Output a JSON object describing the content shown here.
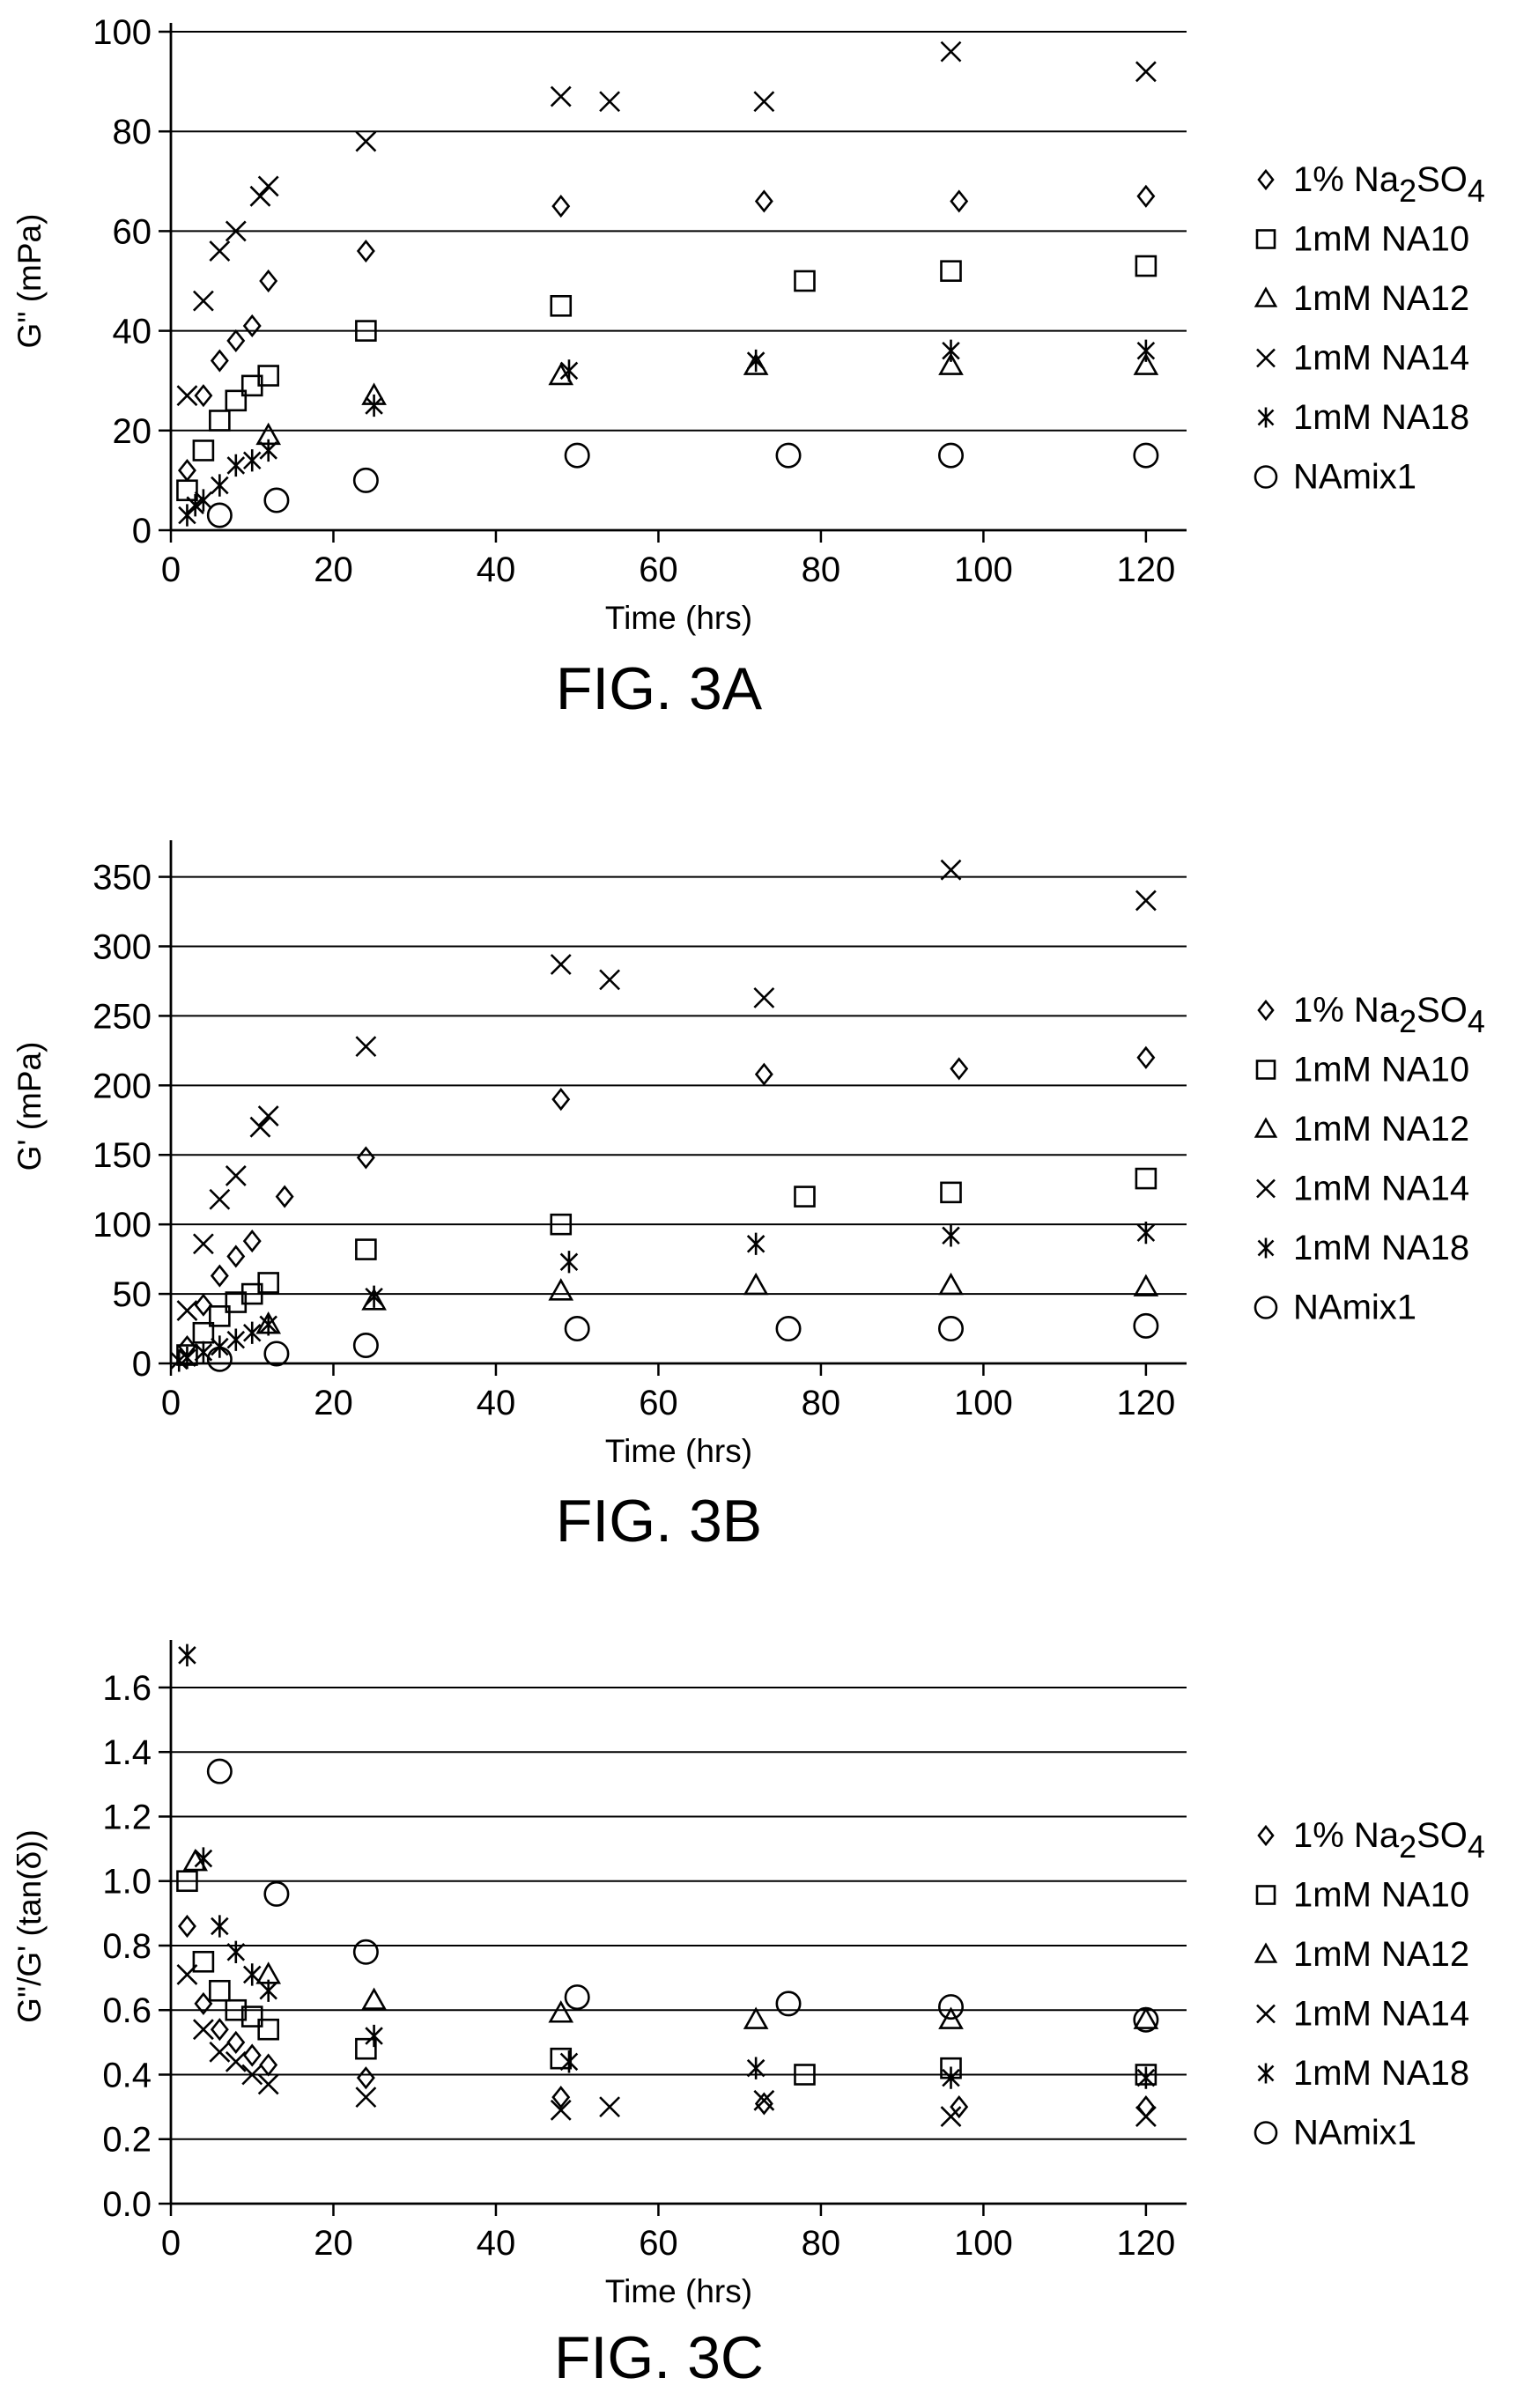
{
  "chart_data": [
    {
      "type": "scatter",
      "figure_label": "FIG. 3A",
      "xlabel": "Time (hrs)",
      "ylabel": "G\" (mPa)",
      "xlim": [
        0,
        125
      ],
      "ylim": [
        0,
        100
      ],
      "xticks": [
        0,
        20,
        40,
        60,
        80,
        100,
        120
      ],
      "yticks": [
        0,
        20,
        40,
        60,
        80,
        100
      ],
      "grid": "horizontal",
      "legend_position": "right",
      "series": [
        {
          "name": "1% Na2SO4",
          "marker": "diamond",
          "x": [
            2,
            4,
            6,
            8,
            10,
            12,
            24,
            48,
            73,
            97,
            120
          ],
          "y": [
            12,
            27,
            34,
            38,
            41,
            50,
            56,
            65,
            66,
            66,
            67
          ]
        },
        {
          "name": "1mM NA10",
          "marker": "square",
          "x": [
            2,
            4,
            6,
            8,
            10,
            12,
            24,
            48,
            78,
            96,
            120
          ],
          "y": [
            8,
            16,
            22,
            26,
            29,
            31,
            40,
            45,
            50,
            52,
            53
          ]
        },
        {
          "name": "1mM NA12",
          "marker": "triangle",
          "x": [
            12,
            25,
            48,
            72,
            96,
            120
          ],
          "y": [
            19,
            27,
            31,
            33,
            33,
            33
          ]
        },
        {
          "name": "1mM NA14",
          "marker": "x",
          "x": [
            2,
            4,
            6,
            8,
            11,
            12,
            24,
            48,
            54,
            73,
            96,
            120
          ],
          "y": [
            27,
            46,
            56,
            60,
            67,
            69,
            78,
            87,
            86,
            86,
            96,
            92
          ]
        },
        {
          "name": "1mM NA18",
          "marker": "asterisk",
          "x": [
            2,
            3,
            4,
            6,
            8,
            10,
            12,
            25,
            49,
            72,
            96,
            120
          ],
          "y": [
            3,
            5,
            6,
            9,
            13,
            14,
            16,
            25,
            32,
            34,
            36,
            36
          ]
        },
        {
          "name": "NAmix1",
          "marker": "circle",
          "x": [
            6,
            13,
            24,
            50,
            76,
            96,
            120
          ],
          "y": [
            3,
            6,
            10,
            15,
            15,
            15,
            15
          ]
        }
      ]
    },
    {
      "type": "scatter",
      "figure_label": "FIG. 3B",
      "xlabel": "Time (hrs)",
      "ylabel": "G' (mPa)",
      "xlim": [
        0,
        125
      ],
      "ylim": [
        0,
        370
      ],
      "xticks": [
        0,
        20,
        40,
        60,
        80,
        100,
        120
      ],
      "yticks": [
        0,
        50,
        100,
        150,
        200,
        250,
        300,
        350
      ],
      "grid": "horizontal",
      "legend_position": "right",
      "series": [
        {
          "name": "1% Na2SO4",
          "marker": "diamond",
          "x": [
            2,
            4,
            6,
            8,
            10,
            14,
            24,
            48,
            73,
            97,
            120
          ],
          "y": [
            12,
            42,
            63,
            77,
            88,
            120,
            148,
            190,
            208,
            212,
            220
          ]
        },
        {
          "name": "1mM NA10",
          "marker": "square",
          "x": [
            2,
            4,
            6,
            8,
            10,
            12,
            24,
            48,
            78,
            96,
            120
          ],
          "y": [
            6,
            22,
            34,
            44,
            50,
            58,
            82,
            100,
            120,
            123,
            133
          ]
        },
        {
          "name": "1mM NA12",
          "marker": "triangle",
          "x": [
            12,
            25,
            48,
            72,
            96,
            120
          ],
          "y": [
            28,
            45,
            52,
            56,
            56,
            55
          ]
        },
        {
          "name": "1mM NA14",
          "marker": "x",
          "x": [
            2,
            4,
            6,
            8,
            11,
            12,
            24,
            48,
            54,
            73,
            96,
            120
          ],
          "y": [
            38,
            86,
            118,
            135,
            170,
            178,
            228,
            287,
            276,
            263,
            355,
            333
          ]
        },
        {
          "name": "1mM NA18",
          "marker": "asterisk",
          "x": [
            1,
            2,
            4,
            6,
            8,
            10,
            12,
            25,
            49,
            72,
            96,
            120
          ],
          "y": [
            2,
            4,
            8,
            12,
            17,
            22,
            28,
            48,
            73,
            86,
            92,
            94
          ]
        },
        {
          "name": "NAmix1",
          "marker": "circle",
          "x": [
            6,
            13,
            24,
            50,
            76,
            96,
            120
          ],
          "y": [
            3,
            7,
            13,
            25,
            25,
            25,
            27
          ]
        }
      ]
    },
    {
      "type": "scatter",
      "figure_label": "FIG. 3C",
      "xlabel": "Time (hrs)",
      "ylabel": "G\"/G' (tan(δ))",
      "xlim": [
        0,
        125
      ],
      "ylim": [
        0,
        1.72
      ],
      "xticks": [
        0,
        20,
        40,
        60,
        80,
        100,
        120
      ],
      "yticks": [
        0,
        0.2,
        0.4,
        0.6,
        0.8,
        1.0,
        1.2,
        1.4,
        1.6
      ],
      "grid": "horizontal",
      "legend_position": "right",
      "series": [
        {
          "name": "1% Na2SO4",
          "marker": "diamond",
          "x": [
            2,
            4,
            6,
            8,
            10,
            12,
            24,
            48,
            73,
            97,
            120
          ],
          "y": [
            0.86,
            0.62,
            0.54,
            0.5,
            0.46,
            0.43,
            0.39,
            0.33,
            0.31,
            0.3,
            0.3
          ]
        },
        {
          "name": "1mM NA10",
          "marker": "square",
          "x": [
            2,
            4,
            6,
            8,
            10,
            12,
            24,
            48,
            78,
            96,
            120
          ],
          "y": [
            1.0,
            0.75,
            0.66,
            0.6,
            0.58,
            0.54,
            0.48,
            0.45,
            0.4,
            0.42,
            0.4
          ]
        },
        {
          "name": "1mM NA12",
          "marker": "triangle",
          "x": [
            3,
            12,
            25,
            48,
            72,
            96,
            120
          ],
          "y": [
            1.06,
            0.71,
            0.63,
            0.59,
            0.57,
            0.57,
            0.57
          ]
        },
        {
          "name": "1mM NA14",
          "marker": "x",
          "x": [
            2,
            4,
            6,
            8,
            10,
            12,
            24,
            48,
            54,
            73,
            96,
            120
          ],
          "y": [
            0.71,
            0.54,
            0.47,
            0.44,
            0.4,
            0.37,
            0.33,
            0.29,
            0.3,
            0.32,
            0.27,
            0.27
          ]
        },
        {
          "name": "1mM NA18",
          "marker": "asterisk",
          "x": [
            2,
            4,
            6,
            8,
            10,
            12,
            25,
            49,
            72,
            96,
            120
          ],
          "y": [
            1.7,
            1.07,
            0.86,
            0.78,
            0.71,
            0.66,
            0.52,
            0.44,
            0.42,
            0.39,
            0.39
          ]
        },
        {
          "name": "NAmix1",
          "marker": "circle",
          "x": [
            6,
            13,
            24,
            50,
            76,
            96,
            120
          ],
          "y": [
            1.34,
            0.96,
            0.78,
            0.64,
            0.62,
            0.61,
            0.57
          ]
        }
      ]
    }
  ],
  "legend": {
    "items": [
      {
        "marker": "diamond",
        "text_prefix": "1% Na",
        "sub1": "2",
        "text_mid": "SO",
        "sub2": "4"
      },
      {
        "marker": "square",
        "text": "1mM NA10"
      },
      {
        "marker": "triangle",
        "text": "1mM NA12"
      },
      {
        "marker": "x",
        "text": "1mM NA14"
      },
      {
        "marker": "asterisk",
        "text": "1mM NA18"
      },
      {
        "marker": "circle",
        "text": "NAmix1"
      }
    ]
  }
}
